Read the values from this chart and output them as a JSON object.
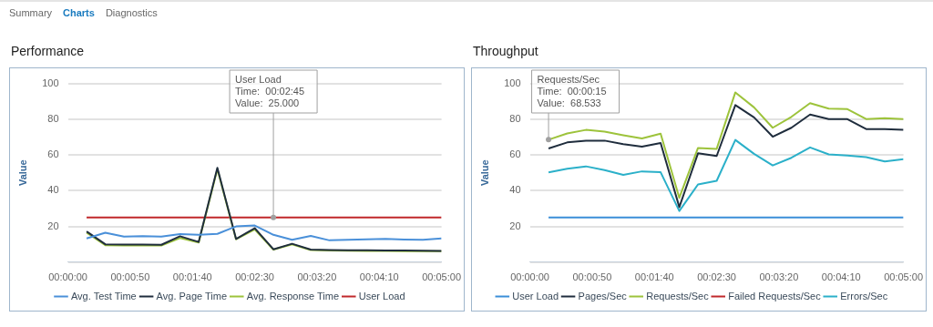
{
  "chart_data": [
    {
      "type": "other",
      "annotations": [
        "Summary",
        "Charts",
        "Diagnostics"
      ]
    },
    {
      "type": "line",
      "title": "Performance",
      "ylabel": "Value",
      "legend": "bottom",
      "grid": "y",
      "marker": "none",
      "line_style": "solid",
      "x": [
        15,
        30,
        45,
        60,
        75,
        90,
        105,
        120,
        135,
        150,
        165,
        180,
        195,
        210,
        225,
        240,
        255,
        270,
        285,
        300
      ],
      "xlim": [
        0,
        300
      ],
      "xticks": [
        {
          "value": 0,
          "label": "00:00:00"
        },
        {
          "value": 50,
          "label": "00:00:50"
        },
        {
          "value": 100,
          "label": "00:01:40"
        },
        {
          "value": 150,
          "label": "00:02:30"
        },
        {
          "value": 200,
          "label": "00:03:20"
        },
        {
          "value": 250,
          "label": "00:04:10"
        },
        {
          "value": 300,
          "label": "00:05:00"
        }
      ],
      "ylim": [
        0,
        100
      ],
      "yticks": [
        {
          "value": 0,
          "label": null
        },
        20,
        40,
        60,
        80,
        100
      ],
      "series": [
        {
          "name": "Avg. Test Time",
          "color": "#4a90d9",
          "values": [
            13.3,
            16.5,
            14.3,
            14.5,
            14.3,
            15.7,
            15.3,
            15.8,
            20,
            20.5,
            15.3,
            12.5,
            14.7,
            12.2,
            12.5,
            12.8,
            13,
            12.7,
            12.5,
            13.3
          ]
        },
        {
          "name": "Avg. Page Time",
          "color": "#1f2d3d",
          "values": [
            17.2,
            10,
            9.8,
            9.8,
            9.7,
            14.5,
            11.3,
            52.8,
            13,
            19,
            7.2,
            10.3,
            7,
            6.8,
            6.7,
            6.6,
            6.5,
            6.5,
            6.4,
            6.3
          ]
        },
        {
          "name": "Avg. Response Time",
          "color": "#9dc33b",
          "values": [
            16.5,
            9.5,
            9.3,
            9.3,
            9.3,
            13.5,
            11,
            52,
            12.8,
            18.3,
            7,
            10,
            6.8,
            6.5,
            6.4,
            6.3,
            6.3,
            6.2,
            6.2,
            6.2
          ]
        },
        {
          "name": "User Load",
          "color": "#c0282b",
          "values": [
            25,
            25,
            25,
            25,
            25,
            25,
            25,
            25,
            25,
            25,
            25,
            25,
            25,
            25,
            25,
            25,
            25,
            25,
            25,
            25
          ]
        }
      ],
      "annotations": [
        {
          "text": "User Load\nTime:  00:02:45\nValue:  25.000",
          "x": 165,
          "y": 25
        }
      ]
    },
    {
      "type": "line",
      "title": "Throughput",
      "ylabel": "Value",
      "legend": "bottom",
      "grid": "y",
      "marker": "none",
      "line_style": "solid",
      "x": [
        15,
        30,
        45,
        60,
        75,
        90,
        105,
        120,
        135,
        150,
        165,
        180,
        195,
        210,
        225,
        240,
        255,
        270,
        285,
        300
      ],
      "xlim": [
        0,
        300
      ],
      "xticks": [
        {
          "value": 0,
          "label": "00:00:00"
        },
        {
          "value": 50,
          "label": "00:00:50"
        },
        {
          "value": 100,
          "label": "00:01:40"
        },
        {
          "value": 150,
          "label": "00:02:30"
        },
        {
          "value": 200,
          "label": "00:03:20"
        },
        {
          "value": 250,
          "label": "00:04:10"
        },
        {
          "value": 300,
          "label": "00:05:00"
        }
      ],
      "ylim": [
        0,
        100
      ],
      "yticks": [
        {
          "value": 0,
          "label": null
        },
        20,
        40,
        60,
        80,
        100
      ],
      "series": [
        {
          "name": "User Load",
          "color": "#3b8ed8",
          "values": [
            25,
            25,
            25,
            25,
            25,
            25,
            25,
            25,
            25,
            25,
            25,
            25,
            25,
            25,
            25,
            25,
            25,
            25,
            25,
            25
          ]
        },
        {
          "name": "Pages/Sec",
          "color": "#1f2d3d",
          "values": [
            63.6,
            67,
            68,
            68,
            66,
            64.6,
            66.7,
            30.8,
            60.9,
            59.4,
            87.9,
            81,
            70.2,
            75.2,
            82.6,
            80,
            80,
            74.5,
            74.5,
            74
          ]
        },
        {
          "name": "Requests/Sec",
          "color": "#9dc33b",
          "values": [
            68.533,
            72,
            74,
            73,
            71,
            69.2,
            71.9,
            36,
            63.9,
            63.4,
            95,
            86.6,
            75.2,
            81.3,
            89,
            85.9,
            85.6,
            80.1,
            80.5,
            80.1
          ]
        },
        {
          "name": "Failed Requests/Sec",
          "color": "#c0282b",
          "values": [
            null,
            null,
            null,
            null,
            null,
            null,
            null,
            null,
            null,
            null,
            null,
            null,
            null,
            null,
            null,
            null,
            null,
            null,
            null,
            null
          ]
        },
        {
          "name": "Errors/Sec",
          "color": "#2bb0c9",
          "values": [
            50.2,
            52.3,
            53.6,
            51.5,
            48.8,
            50.8,
            50.3,
            28.6,
            43.5,
            45.5,
            68.4,
            60.6,
            54.1,
            58.4,
            64.2,
            60.3,
            59.6,
            58.8,
            56.3,
            57.6
          ]
        }
      ],
      "annotations": [
        {
          "text": "Requests/Sec\nTime:  00:00:15\nValue:  68.533",
          "x": 15,
          "y": 68.533
        }
      ]
    }
  ]
}
